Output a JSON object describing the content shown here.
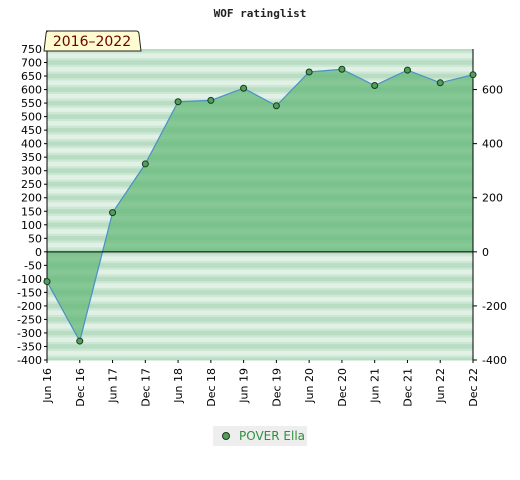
{
  "chart_data": {
    "type": "area",
    "title": "WOF ratinglist",
    "badge": "2016–2022",
    "categories": [
      "Jun 16",
      "Dec 16",
      "Jun 17",
      "Dec 17",
      "Jun 18",
      "Dec 18",
      "Jun 19",
      "Dec 19",
      "Jun 20",
      "Dec 20",
      "Jun 21",
      "Dec 21",
      "Jun 22",
      "Dec 22"
    ],
    "series": [
      {
        "name": "POVER Ella",
        "values": [
          -110,
          -330,
          145,
          325,
          555,
          560,
          605,
          540,
          665,
          675,
          615,
          672,
          625,
          655
        ]
      }
    ],
    "ylim_left": [
      -400,
      750
    ],
    "left_ticks": [
      -400,
      -350,
      -300,
      -250,
      -200,
      -150,
      -100,
      -50,
      0,
      50,
      100,
      150,
      200,
      250,
      300,
      350,
      400,
      450,
      500,
      550,
      600,
      650,
      700,
      750
    ],
    "right_ticks": [
      -400,
      -200,
      0,
      200,
      400,
      600
    ],
    "grid": true,
    "legend_position": "bottom-center",
    "colors": {
      "fill": "#66b87a",
      "line": "#4a90c8",
      "marker": "#4f9f5f",
      "band_dark": "#b9ddc3",
      "band_light": "#e8f4eb",
      "badge_bg": "#fffbd0"
    }
  }
}
